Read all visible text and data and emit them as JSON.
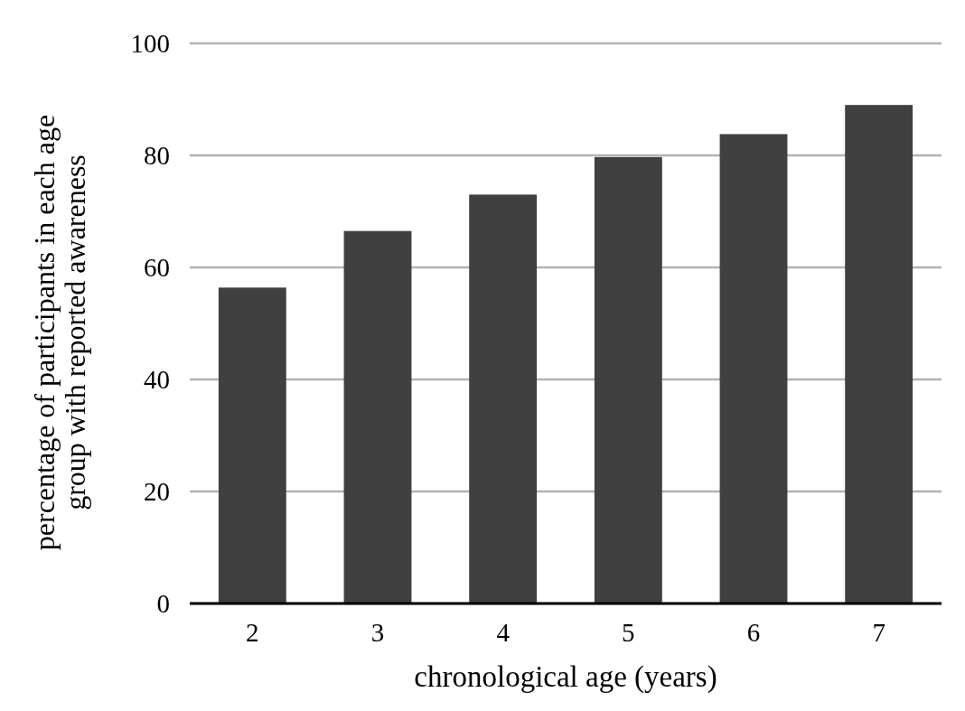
{
  "chart_data": {
    "type": "bar",
    "xlabel": "chronological age (years)",
    "ylabel": "percentage of participants in each age\ngroup with reported awareness",
    "categories": [
      "2",
      "3",
      "4",
      "5",
      "6",
      "7"
    ],
    "values": [
      56.4,
      66.5,
      73,
      79.7,
      83.8,
      89
    ],
    "color": "#404040",
    "ylim": [
      0,
      100
    ],
    "yticks": [
      0,
      20,
      40,
      60,
      80,
      100
    ],
    "grid": "y"
  }
}
